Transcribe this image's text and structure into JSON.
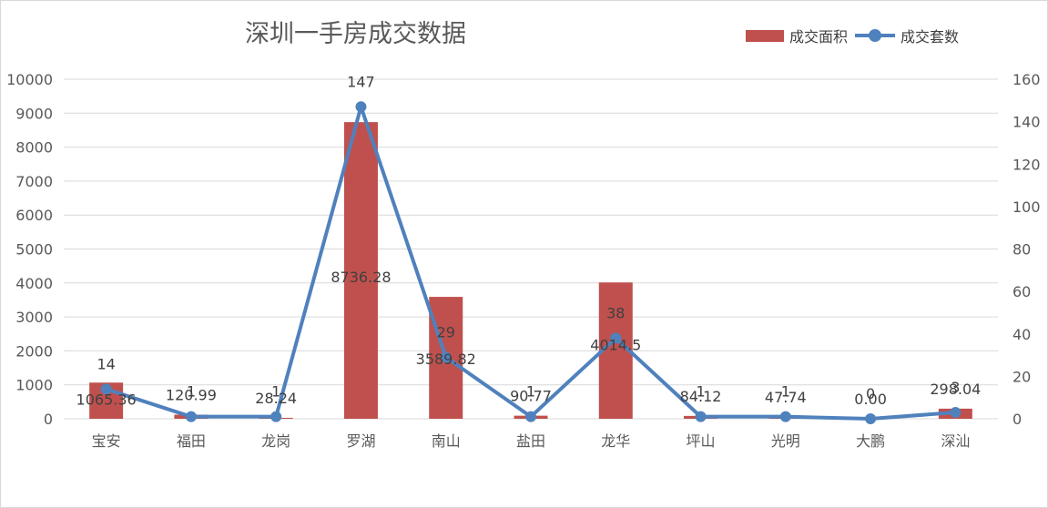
{
  "chart_data": {
    "type": "bar+line",
    "title": "深圳一手房成交数据",
    "categories": [
      "宝安",
      "福田",
      "龙岗",
      "罗湖",
      "南山",
      "盐田",
      "龙华",
      "坪山",
      "光明",
      "大鹏",
      "深汕"
    ],
    "series": [
      {
        "name": "成交面积",
        "type": "bar",
        "axis": "left",
        "color": "#c0504d",
        "values": [
          1065.36,
          120.99,
          28.24,
          8736.28,
          3589.82,
          90.77,
          4014.5,
          84.12,
          47.74,
          0.0,
          298.04
        ],
        "labels": [
          "1065.36",
          "120.99",
          "28.24",
          "8736.28",
          "3589.82",
          "90.77",
          "4014.5",
          "84.12",
          "47.74",
          "0.00",
          "298.04"
        ]
      },
      {
        "name": "成交套数",
        "type": "line",
        "axis": "right",
        "color": "#4f81bd",
        "values": [
          14,
          1,
          1,
          147,
          29,
          1,
          38,
          1,
          1,
          0,
          3
        ],
        "labels": [
          "14",
          "1",
          "1",
          "147",
          "29",
          "1",
          "38",
          "1",
          "1",
          "0",
          "3"
        ]
      }
    ],
    "y_left": {
      "min": 0,
      "max": 10000,
      "ticks": [
        "0",
        "1000",
        "2000",
        "3000",
        "4000",
        "5000",
        "6000",
        "7000",
        "8000",
        "9000",
        "10000"
      ]
    },
    "y_right": {
      "min": 0,
      "max": 160,
      "ticks": [
        "0",
        "20",
        "40",
        "60",
        "80",
        "100",
        "120",
        "140",
        "160"
      ]
    },
    "grid": true,
    "legend_position": "top-right"
  }
}
